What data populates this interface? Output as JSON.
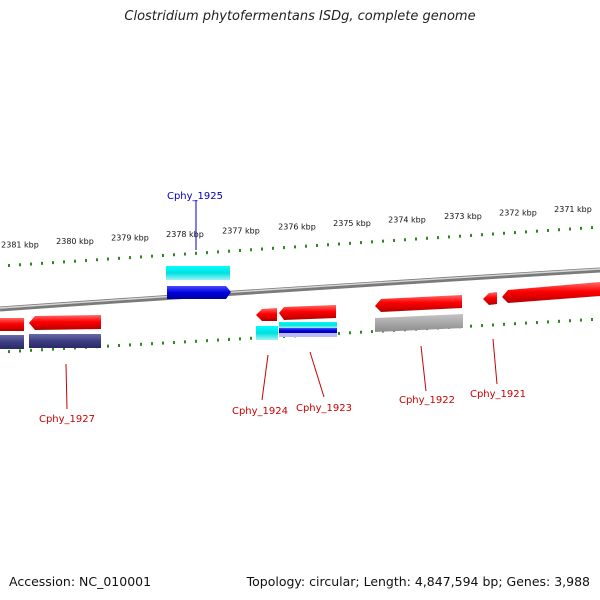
{
  "title": "Clostridium phytofermentans ISDg, complete genome",
  "footer": {
    "accession": "Accession: NC_010001",
    "summary": "Topology: circular; Length: 4,847,594 bp; Genes: 3,988"
  },
  "ruler_labels": [
    "2381 kbp",
    "2380 kbp",
    "2379 kbp",
    "2378 kbp",
    "2377 kbp",
    "2376 kbp",
    "2375 kbp",
    "2374 kbp",
    "2373 kbp",
    "2372 kbp",
    "2371 kbp"
  ],
  "gene_labels": [
    {
      "name": "Cphy_1925",
      "color": "#0000bb"
    },
    {
      "name": "Cphy_1927",
      "color": "#cc0000"
    },
    {
      "name": "Cphy_1924",
      "color": "#cc0000"
    },
    {
      "name": "Cphy_1923",
      "color": "#cc0000"
    },
    {
      "name": "Cphy_1922",
      "color": "#cc0000"
    },
    {
      "name": "Cphy_1921",
      "color": "#cc0000"
    }
  ],
  "colors": {
    "cds": "#ff0000",
    "tick": "#2a8a1a",
    "backbone": "#888888",
    "cyan_feature": "#00dddd",
    "blue_feature": "#0000dd",
    "navy_feature": "#4a4a8a",
    "grey_feature": "#b0b0b0"
  }
}
